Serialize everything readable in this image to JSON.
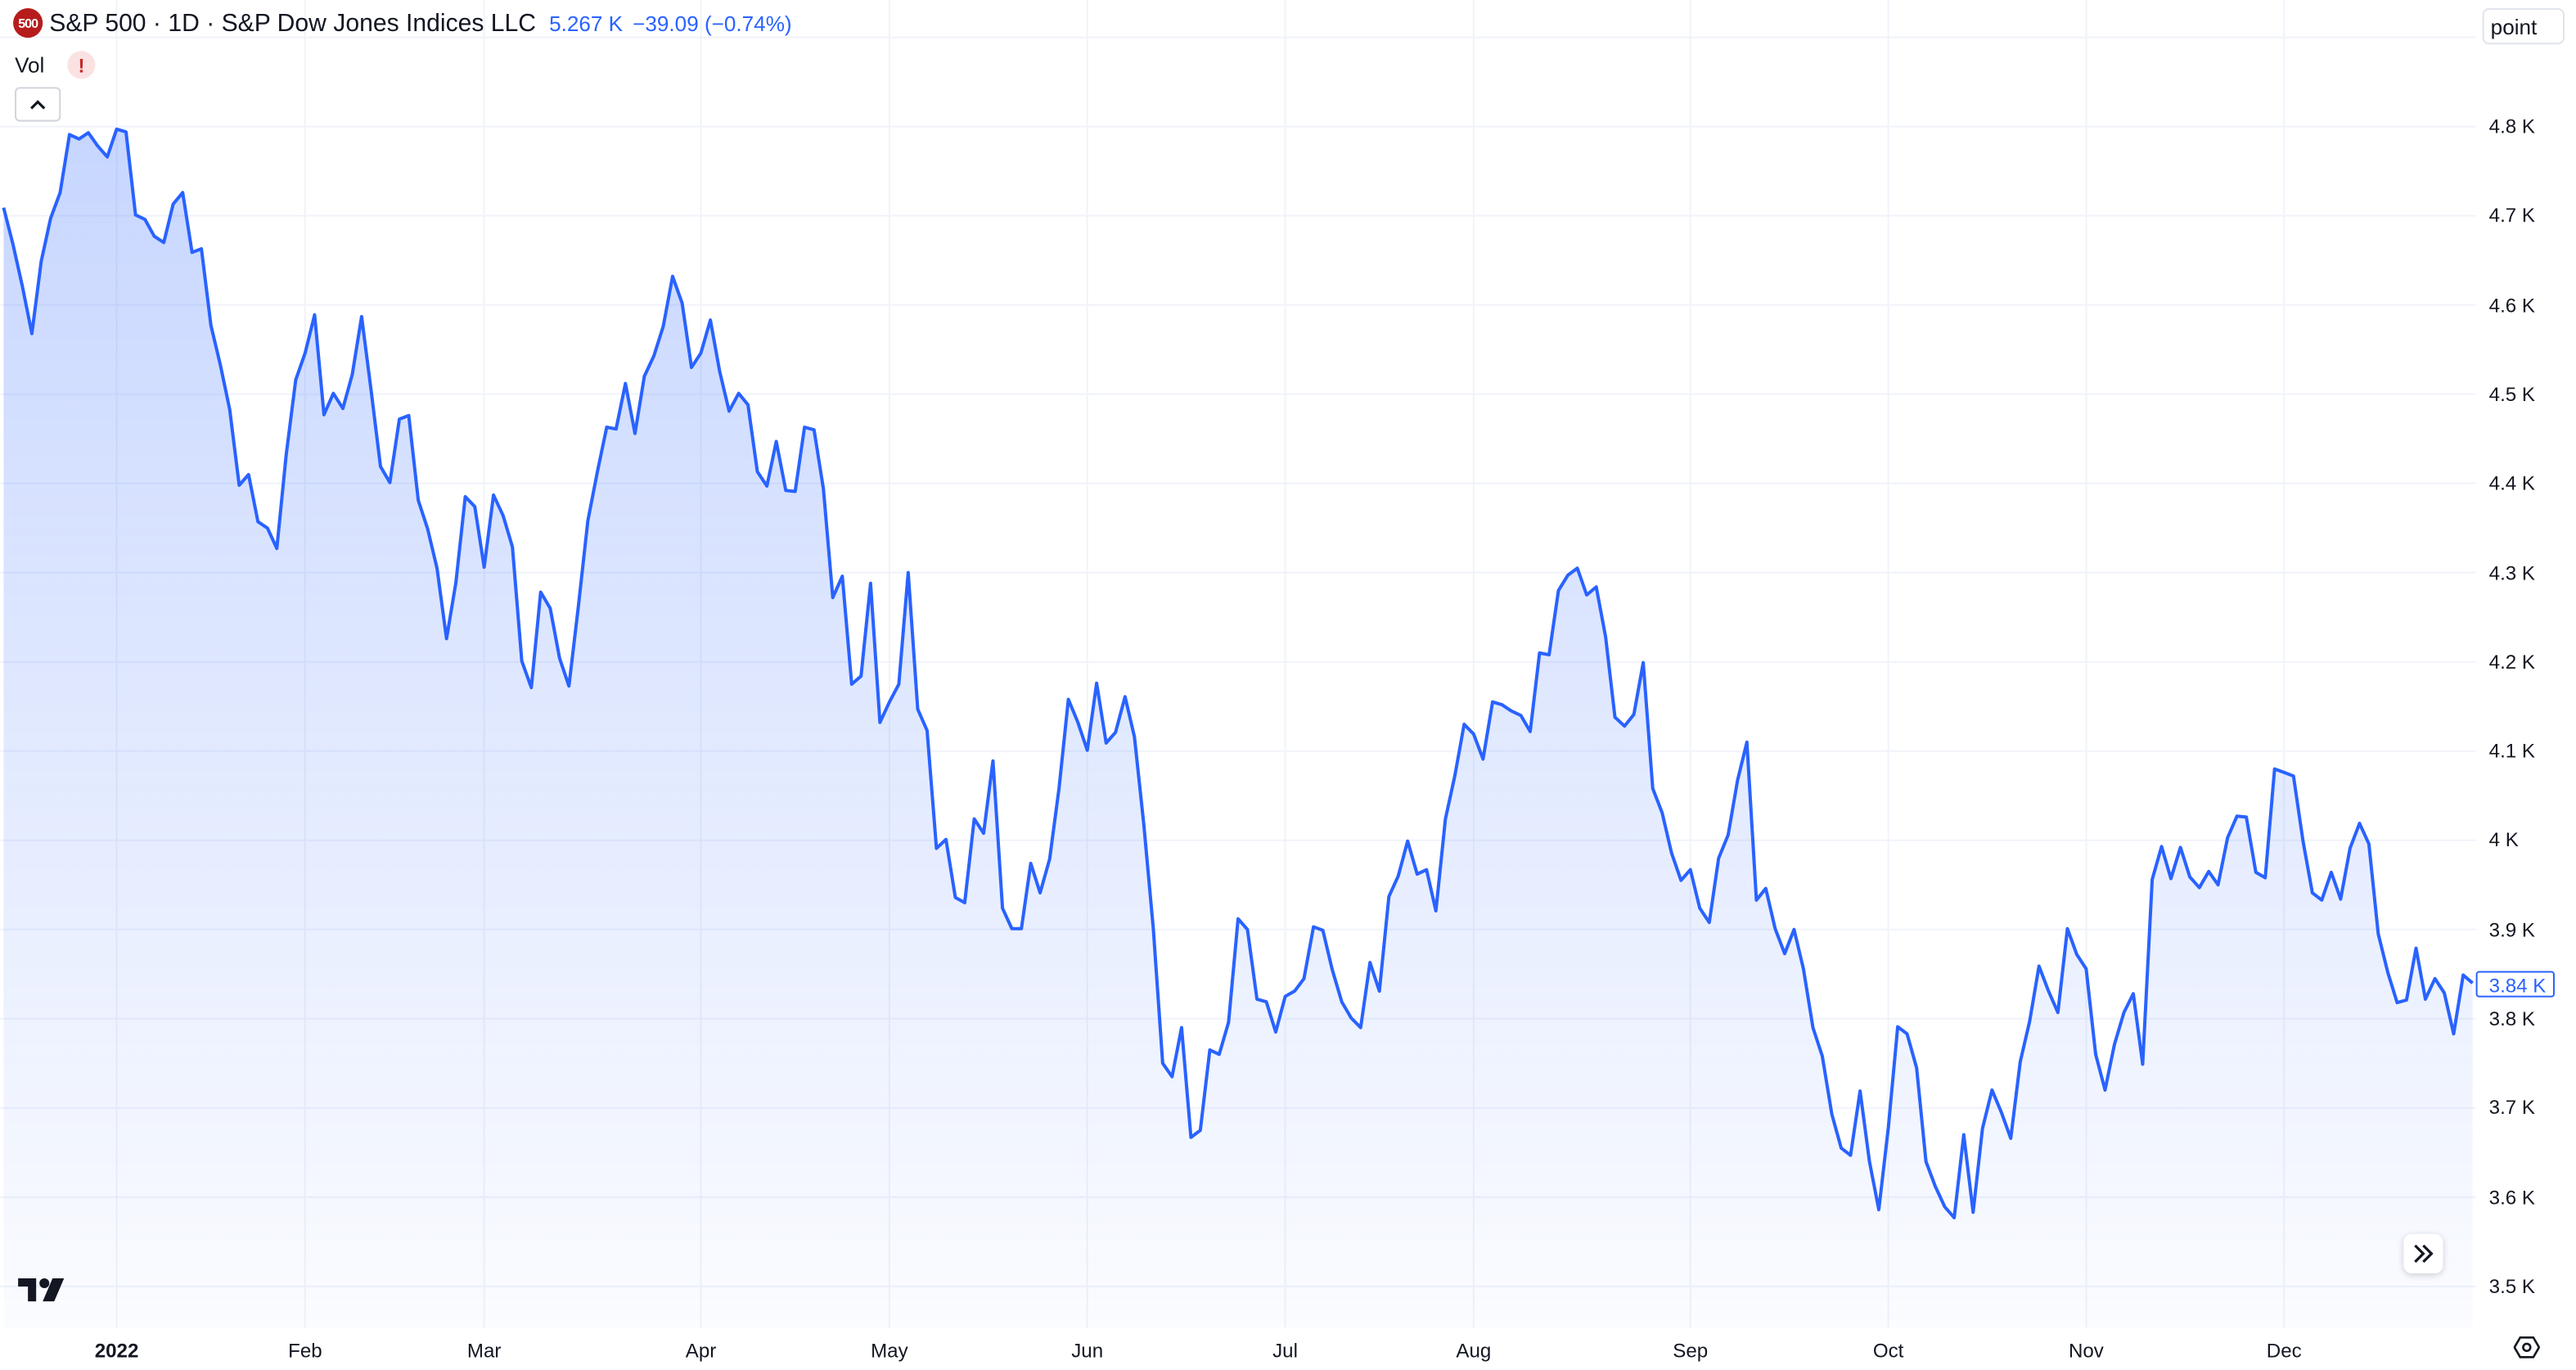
{
  "header": {
    "badge": "500",
    "title": "S&P 500 · 1D · S&P Dow Jones Indices LLC",
    "price": "5.267 K",
    "change": "−39.09 (−0.74%)",
    "vol_label": "Vol",
    "vol_warning": "!",
    "collapse_icon": "chevron-up-icon",
    "unit_label": "point"
  },
  "last_price_label": "3.84 K",
  "colors": {
    "line": "#2962ff",
    "grid": "#f0f3fa",
    "badge": "#b71c1c"
  },
  "chart_data": {
    "type": "area",
    "title": "S&P 500 · 1D",
    "interval": "1D",
    "start": "2021-12-15",
    "ylim": [
      3450,
      4900
    ],
    "y_ticks": [
      3500,
      3600,
      3700,
      3800,
      3900,
      4000,
      4100,
      4200,
      4300,
      4400,
      4500,
      4600,
      4700,
      4800
    ],
    "y_tick_labels": [
      "3.5 K",
      "3.6 K",
      "3.7 K",
      "3.8 K",
      "3.9 K",
      "4 K",
      "4.1 K",
      "4.2 K",
      "4.3 K",
      "4.4 K",
      "4.5 K",
      "4.6 K",
      "4.7 K",
      "4.8 K"
    ],
    "x_ticks": [
      {
        "label": "2022",
        "index": 12,
        "year": true
      },
      {
        "label": "Feb",
        "index": 32
      },
      {
        "label": "Mar",
        "index": 51
      },
      {
        "label": "Apr",
        "index": 74
      },
      {
        "label": "May",
        "index": 94
      },
      {
        "label": "Jun",
        "index": 115
      },
      {
        "label": "Jul",
        "index": 136
      },
      {
        "label": "Aug",
        "index": 156
      },
      {
        "label": "Sep",
        "index": 179
      },
      {
        "label": "Oct",
        "index": 200
      },
      {
        "label": "Nov",
        "index": 221
      },
      {
        "label": "Dec",
        "index": 242
      }
    ],
    "grid": true,
    "values": [
      4709,
      4668,
      4621,
      4568,
      4649,
      4697,
      4726,
      4791,
      4786,
      4793,
      4778,
      4766,
      4797,
      4794,
      4701,
      4696,
      4677,
      4670,
      4713,
      4726,
      4659,
      4663,
      4577,
      4533,
      4483,
      4398,
      4410,
      4357,
      4350,
      4327,
      4432,
      4516,
      4546,
      4589,
      4477,
      4501,
      4484,
      4522,
      4587,
      4504,
      4419,
      4401,
      4472,
      4476,
      4381,
      4349,
      4305,
      4226,
      4289,
      4385,
      4374,
      4306,
      4387,
      4364,
      4329,
      4201,
      4171,
      4278,
      4260,
      4204,
      4173,
      4263,
      4358,
      4412,
      4463,
      4461,
      4512,
      4456,
      4520,
      4543,
      4576,
      4632,
      4602,
      4530,
      4546,
      4583,
      4525,
      4481,
      4501,
      4488,
      4413,
      4397,
      4447,
      4392,
      4391,
      4463,
      4460,
      4394,
      4272,
      4296,
      4175,
      4184,
      4288,
      4132,
      4155,
      4175,
      4300,
      4147,
      4123,
      3991,
      4001,
      3936,
      3930,
      4024,
      4008,
      4089,
      3924,
      3901,
      3901,
      3974,
      3941,
      3979,
      4058,
      4158,
      4132,
      4101,
      4176,
      4109,
      4121,
      4161,
      4116,
      4018,
      3901,
      3750,
      3735,
      3790,
      3667,
      3675,
      3765,
      3760,
      3796,
      3912,
      3900,
      3822,
      3819,
      3785,
      3825,
      3831,
      3845,
      3903,
      3899,
      3855,
      3819,
      3801,
      3790,
      3863,
      3831,
      3937,
      3960,
      3999,
      3962,
      3967,
      3921,
      4024,
      4072,
      4130,
      4119,
      4091,
      4155,
      4152,
      4145,
      4140,
      4122,
      4210,
      4208,
      4280,
      4297,
      4305,
      4275,
      4284,
      4228,
      4138,
      4128,
      4141,
      4199,
      4058,
      4031,
      3986,
      3955,
      3967,
      3924,
      3908,
      3980,
      4006,
      4067,
      4110,
      3933,
      3946,
      3901,
      3873,
      3900,
      3856,
      3790,
      3758,
      3693,
      3655,
      3647,
      3719,
      3640,
      3586,
      3678,
      3791,
      3783,
      3745,
      3640,
      3612,
      3589,
      3577,
      3670,
      3583,
      3677,
      3720,
      3695,
      3666,
      3752,
      3797,
      3859,
      3831,
      3807,
      3901,
      3872,
      3856,
      3760,
      3720,
      3771,
      3807,
      3828,
      3749,
      3956,
      3993,
      3957,
      3992,
      3959,
      3947,
      3965,
      3950,
      4003,
      4027,
      4026,
      3964,
      3958,
      4080,
      4076,
      4072,
      3999,
      3941,
      3933,
      3964,
      3934,
      3991,
      4019,
      3996,
      3895,
      3852,
      3818,
      3821,
      3879,
      3822,
      3845,
      3829,
      3783,
      3849,
      3840
    ]
  }
}
